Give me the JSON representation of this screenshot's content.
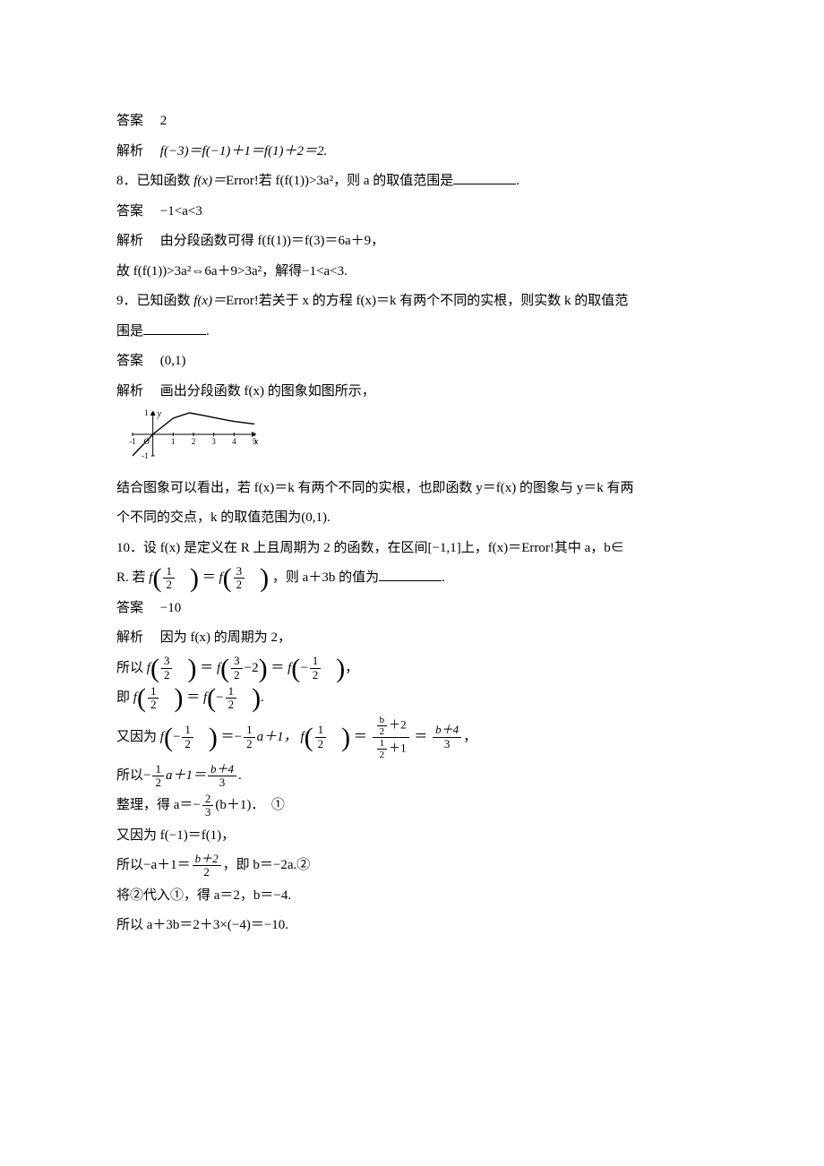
{
  "colors": {
    "text": "#000000",
    "bg": "#ffffff",
    "line": "#000000"
  },
  "typography": {
    "body_fontsize": 15,
    "frac_fontsize": 13,
    "family": "SimSun / Times New Roman"
  },
  "q7": {
    "answer_label": "答案",
    "answer_value": "2",
    "explain_label": "解析",
    "explain_text": "f(−3)＝f(−1)＋1＝f(1)＋2＝2."
  },
  "q8": {
    "prompt_prefix": "8．已知函数 ",
    "fx": "f(x)＝",
    "error": "Error!",
    "cond": "若 f(f(1))>3a²，则 a 的取值范围是",
    "period": ".",
    "answer_label": "答案",
    "answer_value": "−1<a<3",
    "explain_label": "解析",
    "explain_line1": "由分段函数可得 f(f(1))＝f(3)＝6a＋9，",
    "explain_line2": "故 f(f(1))>3a²⇔6a＋9>3a²，解得−1<a<3."
  },
  "q9": {
    "prompt_prefix": "9．已知函数 ",
    "fx": "f(x)＝",
    "error": "Error!",
    "cond_a": "若关于 x 的方程 f(x)＝k 有两个不同的实根，则实数 k 的取值范",
    "cond_b": "围是",
    "period": ".",
    "answer_label": "答案",
    "answer_value": "(0,1)",
    "explain_label": "解析",
    "explain_intro": "画出分段函数 f(x) 的图象如图所示，",
    "graph": {
      "width": 160,
      "height": 56,
      "x_range": [
        -1,
        5
      ],
      "y_range": [
        -1,
        1
      ],
      "x_ticks": [
        -1,
        1,
        2,
        3,
        4,
        5
      ],
      "y_ticks": [
        -1,
        1
      ],
      "axis_color": "#000000",
      "curve_color": "#000000",
      "curve_width": 1.4,
      "y_label": "y",
      "x_label": "x",
      "origin_label": "O",
      "curve_type": "piecewise",
      "curve_desc": "rises from (-1,-1) to ~(1.8,1) then gently decreases toward x=5",
      "tick_fontsize": 9
    },
    "explain_after1": "结合图象可以看出，若 f(x)＝k 有两个不同的实根，也即函数 y＝f(x) 的图象与 y＝k 有两",
    "explain_after2": "个不同的交点，k 的取值范围为(0,1)."
  },
  "q10": {
    "prompt_prefix": "10．设 f(x) 是定义在 R 上且周期为 2 的函数，在区间[−1,1]上，f(x)＝",
    "error": "Error!",
    "cond_tail": "其中 a，b∈",
    "r_line_head": "R. 若 ",
    "equals_text": "＝",
    "then_text": "，则 a＋3b 的值为",
    "period": ".",
    "frac_1_2_num": "1",
    "frac_1_2_den": "2",
    "frac_3_2_num": "3",
    "frac_3_2_den": "2",
    "answer_label": "答案",
    "answer_value": "−10",
    "explain_label": "解析",
    "s_line1": "因为 f(x) 的周期为 2，",
    "s_line2_head": "所以 ",
    "f_label": "f",
    "frac_3_2_minus2_num": "3",
    "frac_3_2_minus2_tail": "−2",
    "frac_neg_1_2_num": "1",
    "frac_neg_1_2_den": "2",
    "comma": "，",
    "s_line3_head": "即 ",
    "dot": ".",
    "s_line4_head": "又因为 ",
    "eq_neg_half_a_plus1": "＝−",
    "a_plus1": "a＋1，",
    "f12_expr_num": "b",
    "f12_expr_num_tail": "＋2",
    "f12_expr_den_num": "1",
    "f12_expr_den_tail": "＋1",
    "eq_final_num": "b＋4",
    "eq_final_den": "3",
    "s_line5_head": "所以−",
    "s_line5_mid": "a＋1＝",
    "s_line5_tail": ".",
    "s_line6_head": "整理，得 a＝−",
    "two_thirds_num": "2",
    "two_thirds_den": "3",
    "s_line6_tail": "(b＋1)．",
    "mark1": "①",
    "s_line7": "又因为 f(−1)＝f(1)，",
    "s_line8_head": "所以−a＋1＝",
    "b_plus2_num": "b＋2",
    "b_plus2_den": "2",
    "s_line8_tail": "，即 b＝−2a.",
    "mark2": "②",
    "s_line9": "将②代入①，得 a＝2，b＝−4.",
    "s_line10": "所以 a＋3b＝2＋3×(−4)＝−10."
  }
}
